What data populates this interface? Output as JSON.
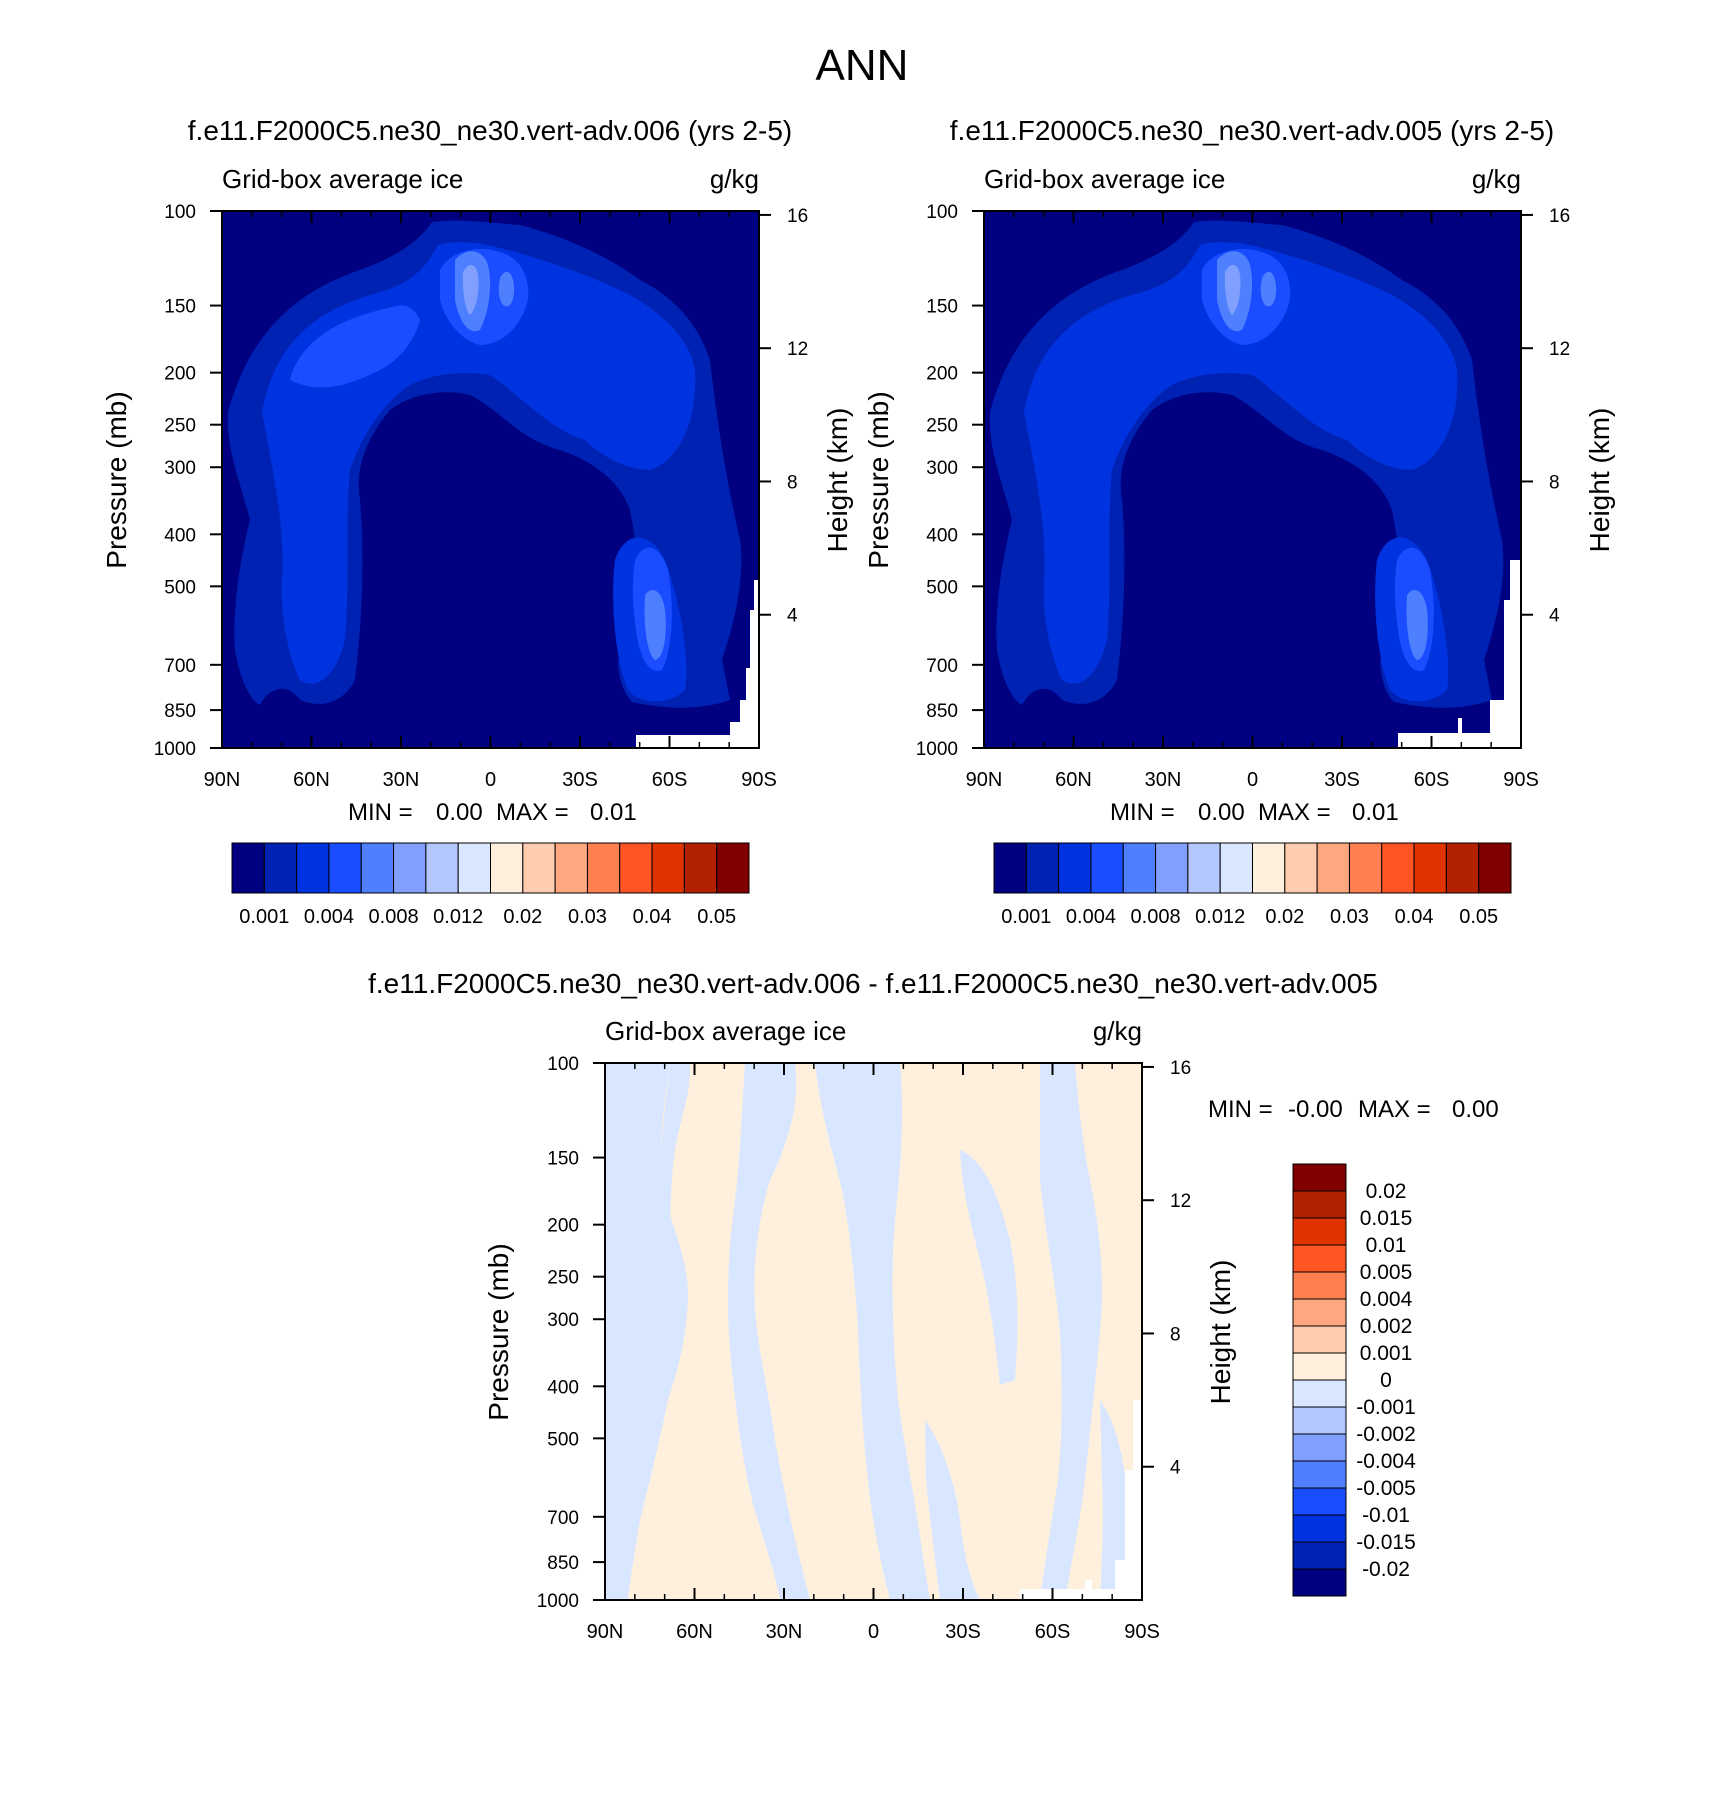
{
  "figure_title": "ANN",
  "palette": {
    "abs": [
      "#000080",
      "#0022b3",
      "#0033e0",
      "#1a4dff",
      "#4d7fff",
      "#809fff",
      "#b3c6ff",
      "#d9e6ff",
      "#fff0dd",
      "#ffccb0",
      "#ffa880",
      "#ff7f50",
      "#ff5522",
      "#e03300",
      "#b32200",
      "#800000"
    ],
    "diff": [
      "#000080",
      "#0022b3",
      "#0033e0",
      "#1a4dff",
      "#4d7fff",
      "#809fff",
      "#b3c6ff",
      "#d9e6ff",
      "#fff0dd",
      "#ffccb0",
      "#ffa880",
      "#ff7f50",
      "#ff5522",
      "#e03300",
      "#b32200",
      "#800000"
    ]
  },
  "chart_data": [
    {
      "id": "case1",
      "type": "heatmap",
      "title": "f.e11.F2000C5.ne30_ne30.vert-adv.006 (yrs 2-5)",
      "left_label": "Grid-box average ice",
      "right_label": "g/kg",
      "ylabel": "Pressure (mb)",
      "ylabel_right": "Height (km)",
      "xlabel": "",
      "x_ticks": [
        "90N",
        "60N",
        "30N",
        "0",
        "30S",
        "60S",
        "90S"
      ],
      "x_tick_values": [
        90,
        60,
        30,
        0,
        -30,
        -60,
        -90
      ],
      "y_ticks": [
        "100",
        "150",
        "200",
        "250",
        "300",
        "400",
        "500",
        "700",
        "850",
        "1000"
      ],
      "y_tick_values": [
        100,
        150,
        200,
        250,
        300,
        400,
        500,
        700,
        850,
        1000
      ],
      "ylim": [
        1000,
        100
      ],
      "height_ticks": [
        "16",
        "12",
        "8",
        "4"
      ],
      "height_tick_values": [
        16,
        12,
        8,
        4
      ],
      "min_label": "MIN =",
      "min_value": "0.00",
      "max_label": "MAX =",
      "max_value": "0.01",
      "colorbar_labels": [
        "0.001",
        "0.004",
        "0.008",
        "0.012",
        "0.02",
        "0.03",
        "0.04",
        "0.05"
      ],
      "colorbar_levels": 16,
      "colorbar_orientation": "horizontal"
    },
    {
      "id": "case2",
      "type": "heatmap",
      "title": "f.e11.F2000C5.ne30_ne30.vert-adv.005 (yrs 2-5)",
      "left_label": "Grid-box average ice",
      "right_label": "g/kg",
      "ylabel": "Pressure (mb)",
      "ylabel_right": "Height (km)",
      "xlabel": "",
      "x_ticks": [
        "90N",
        "60N",
        "30N",
        "0",
        "30S",
        "60S",
        "90S"
      ],
      "x_tick_values": [
        90,
        60,
        30,
        0,
        -30,
        -60,
        -90
      ],
      "y_ticks": [
        "100",
        "150",
        "200",
        "250",
        "300",
        "400",
        "500",
        "700",
        "850",
        "1000"
      ],
      "y_tick_values": [
        100,
        150,
        200,
        250,
        300,
        400,
        500,
        700,
        850,
        1000
      ],
      "ylim": [
        1000,
        100
      ],
      "height_ticks": [
        "16",
        "12",
        "8",
        "4"
      ],
      "height_tick_values": [
        16,
        12,
        8,
        4
      ],
      "min_label": "MIN =",
      "min_value": "0.00",
      "max_label": "MAX =",
      "max_value": "0.01",
      "colorbar_labels": [
        "0.001",
        "0.004",
        "0.008",
        "0.012",
        "0.02",
        "0.03",
        "0.04",
        "0.05"
      ],
      "colorbar_levels": 16,
      "colorbar_orientation": "horizontal"
    },
    {
      "id": "diff",
      "type": "heatmap",
      "title": "f.e11.F2000C5.ne30_ne30.vert-adv.006 - f.e11.F2000C5.ne30_ne30.vert-adv.005",
      "left_label": "Grid-box average ice",
      "right_label": "g/kg",
      "ylabel": "Pressure (mb)",
      "ylabel_right": "Height (km)",
      "xlabel": "",
      "x_ticks": [
        "90N",
        "60N",
        "30N",
        "0",
        "30S",
        "60S",
        "90S"
      ],
      "x_tick_values": [
        90,
        60,
        30,
        0,
        -30,
        -60,
        -90
      ],
      "y_ticks": [
        "100",
        "150",
        "200",
        "250",
        "300",
        "400",
        "500",
        "700",
        "850",
        "1000"
      ],
      "y_tick_values": [
        100,
        150,
        200,
        250,
        300,
        400,
        500,
        700,
        850,
        1000
      ],
      "ylim": [
        1000,
        100
      ],
      "height_ticks": [
        "16",
        "12",
        "8",
        "4"
      ],
      "height_tick_values": [
        16,
        12,
        8,
        4
      ],
      "min_label": "MIN =",
      "min_value": "-0.00",
      "max_label": "MAX =",
      "max_value": "0.00",
      "colorbar_labels": [
        "0.02",
        "0.015",
        "0.01",
        "0.005",
        "0.004",
        "0.002",
        "0.001",
        "0",
        "-0.001",
        "-0.002",
        "-0.004",
        "-0.005",
        "-0.01",
        "-0.015",
        "-0.02"
      ],
      "colorbar_levels": 16,
      "colorbar_orientation": "vertical"
    }
  ]
}
